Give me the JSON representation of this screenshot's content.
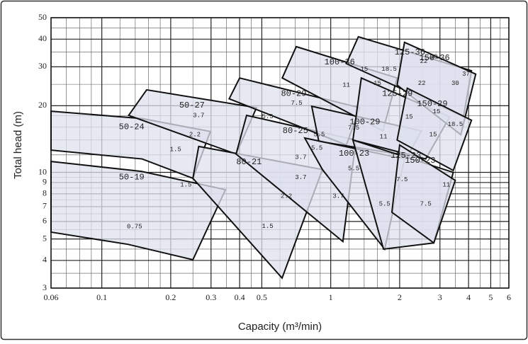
{
  "chart_data": {
    "type": "region",
    "xlabel": "Capacity (m³/min)",
    "ylabel": "Total head (m)",
    "log": true,
    "grid": true,
    "color": "#dde0ee",
    "xlim": [
      0.06,
      6
    ],
    "ylim": [
      3,
      50
    ],
    "xticks": [
      0.06,
      0.1,
      0.2,
      0.3,
      0.4,
      0.5,
      1,
      2,
      3,
      4,
      5,
      6
    ],
    "yticks": [
      3,
      4,
      5,
      6,
      7,
      8,
      9,
      10,
      20,
      30,
      40,
      50
    ],
    "xminor": [
      0.07,
      0.08,
      0.09,
      0.12,
      0.14,
      0.16,
      0.18,
      0.25,
      0.35,
      0.45,
      0.6,
      0.7,
      0.8,
      0.9,
      1.2,
      1.4,
      1.6,
      1.8,
      2.5,
      3.5,
      4.5,
      5.5
    ],
    "yminor": [
      3.5,
      4.5,
      5.5,
      6.5,
      7.5,
      8.5,
      9.5,
      12,
      14,
      16,
      18,
      25,
      35,
      45
    ],
    "regions": [
      {
        "name": "50-24",
        "x": [
          0.06,
          0.15,
          0.298,
          0.25,
          0.15,
          0.06
        ],
        "y": [
          18.9,
          17.5,
          15.3,
          9.4,
          11.5,
          12.6
        ]
      },
      {
        "name": "50-19",
        "x": [
          0.06,
          0.149,
          0.347,
          0.25,
          0.13,
          0.06
        ],
        "y": [
          11.2,
          10.1,
          8.35,
          4.03,
          4.73,
          5.37
        ]
      },
      {
        "name": "50-27",
        "x": [
          0.157,
          0.474,
          0.386,
          0.131
        ],
        "y": [
          23.6,
          19.6,
          12.1,
          18.1
        ]
      },
      {
        "name": "80-21",
        "x": [
          0.265,
          0.92,
          0.613,
          0.25
        ],
        "y": [
          13.1,
          10.3,
          3.33,
          9.4
        ]
      },
      {
        "name": "80-25",
        "x": [
          0.429,
          1.29,
          1.13,
          0.386
        ],
        "y": [
          18.1,
          14.0,
          4.87,
          12.1
        ]
      },
      {
        "name": "80-29",
        "x": [
          0.4,
          1.34,
          1.17,
          0.36
        ],
        "y": [
          26.7,
          19.6,
          13.3,
          21.5
        ]
      },
      {
        "name": "100-36",
        "x": [
          0.707,
          1.95,
          1.69,
          0.614
        ],
        "y": [
          37,
          26.7,
          15.4,
          26.7
        ]
      },
      {
        "name": "100-29",
        "x": [
          0.826,
          2.49,
          2.17,
          0.887
        ],
        "y": [
          19.9,
          15.4,
          11.9,
          13.8
        ]
      },
      {
        "name": "100-23",
        "x": [
          0.77,
          2.1,
          1.72,
          0.92
        ],
        "y": [
          14.3,
          11.5,
          4.5,
          10.3
        ]
      },
      {
        "name": "125-36",
        "x": [
          1.32,
          4.12,
          3.8,
          1.17
        ],
        "y": [
          41,
          28.8,
          17.8,
          31.0
        ]
      },
      {
        "name": "125-29",
        "x": [
          1.36,
          3.31,
          2.6,
          1.25
        ],
        "y": [
          26.7,
          17.8,
          11.5,
          14.0
        ]
      },
      {
        "name": "125-23",
        "x": [
          1.25,
          3.43,
          2.82,
          1.7
        ],
        "y": [
          14.0,
          10,
          4.8,
          4.5
        ]
      },
      {
        "name": "150-36",
        "x": [
          2.1,
          4.3,
          3.7,
          1.95
        ],
        "y": [
          38.7,
          27.8,
          14.8,
          24.8
        ]
      },
      {
        "name": "150-29",
        "x": [
          2.16,
          4.12,
          3.43,
          1.95
        ],
        "y": [
          24.0,
          17.2,
          10.2,
          14.0
        ]
      },
      {
        "name": "150-23",
        "x": [
          2.0,
          3.5,
          2.82,
          1.85
        ],
        "y": [
          13.3,
          9.2,
          4.8,
          6.6
        ]
      }
    ],
    "labels": [
      {
        "text": "0.75",
        "x": 0.139,
        "y": 5.69
      },
      {
        "text": "1.5",
        "x": 0.233,
        "y": 8.8
      },
      {
        "text": "1.5",
        "x": 0.21,
        "y": 12.7
      },
      {
        "text": "2.2",
        "x": 0.255,
        "y": 14.8
      },
      {
        "text": "3.7",
        "x": 0.265,
        "y": 18.1
      },
      {
        "text": "1.5",
        "x": 0.53,
        "y": 5.7
      },
      {
        "text": "2.2",
        "x": 0.64,
        "y": 7.8
      },
      {
        "text": "3.7",
        "x": 0.74,
        "y": 9.5
      },
      {
        "text": "3.7",
        "x": 0.74,
        "y": 11.7
      },
      {
        "text": "5.5",
        "x": 0.87,
        "y": 12.9
      },
      {
        "text": "5.5",
        "x": 0.53,
        "y": 17.9
      },
      {
        "text": "7.5",
        "x": 0.71,
        "y": 20.6
      },
      {
        "text": "3.7",
        "x": 1.08,
        "y": 7.8
      },
      {
        "text": "5.5",
        "x": 1.26,
        "y": 10.4
      },
      {
        "text": "5.5",
        "x": 0.89,
        "y": 14.8
      },
      {
        "text": "7.5",
        "x": 1.26,
        "y": 15.9
      },
      {
        "text": "11",
        "x": 1.17,
        "y": 24.8
      },
      {
        "text": "15",
        "x": 1.4,
        "y": 29.3
      },
      {
        "text": "5.5",
        "x": 1.72,
        "y": 7.2
      },
      {
        "text": "7.5",
        "x": 2.05,
        "y": 9.3
      },
      {
        "text": "11",
        "x": 1.7,
        "y": 14.5
      },
      {
        "text": "15",
        "x": 1.6,
        "y": 25.3
      },
      {
        "text": "18.5",
        "x": 1.8,
        "y": 29.3
      },
      {
        "text": "15",
        "x": 2.2,
        "y": 17.8
      },
      {
        "text": "7.5",
        "x": 2.6,
        "y": 7.2
      },
      {
        "text": "11",
        "x": 3.2,
        "y": 8.8
      },
      {
        "text": "15",
        "x": 2.8,
        "y": 14.8
      },
      {
        "text": "18.5",
        "x": 3.5,
        "y": 16.5
      },
      {
        "text": "15",
        "x": 2.9,
        "y": 18.8
      },
      {
        "text": "22",
        "x": 2.5,
        "y": 25.3
      },
      {
        "text": "22",
        "x": 2.55,
        "y": 31.8
      },
      {
        "text": "30",
        "x": 2.82,
        "y": 33.3
      },
      {
        "text": "30",
        "x": 3.5,
        "y": 25.3
      },
      {
        "text": "37",
        "x": 3.9,
        "y": 27.8
      }
    ]
  }
}
